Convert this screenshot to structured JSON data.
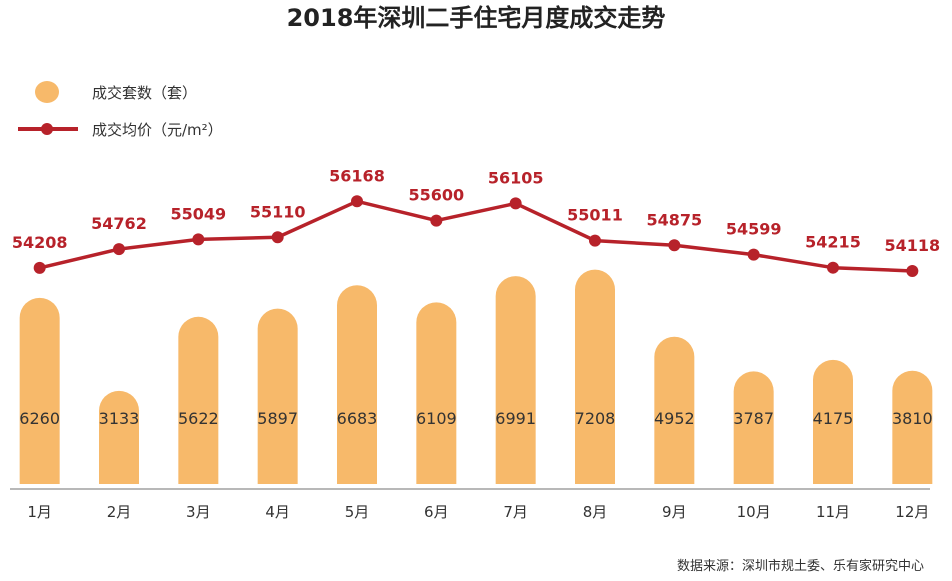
{
  "chart_data": {
    "type": "bar",
    "title": "2018年深圳二手住宅月度成交走势",
    "categories": [
      "1月",
      "2月",
      "3月",
      "4月",
      "5月",
      "6月",
      "7月",
      "8月",
      "9月",
      "10月",
      "11月",
      "12月"
    ],
    "series": [
      {
        "name": "成交套数（套）",
        "type": "bar",
        "values": [
          6260,
          3133,
          5622,
          5897,
          6683,
          6109,
          6991,
          7208,
          4952,
          3787,
          4175,
          3810
        ]
      },
      {
        "name": "成交均价（元/m²）",
        "type": "line",
        "values": [
          54208,
          54762,
          55049,
          55110,
          56168,
          55600,
          56105,
          55011,
          54875,
          54599,
          54215,
          54118
        ]
      }
    ],
    "legend_position": "top-left",
    "grid": false,
    "source": "数据来源：深圳市规土委、乐有家研究中心",
    "colors": {
      "bar": "#F7B96A",
      "line": "#B7222A",
      "price_label": "#B7222A",
      "axis": "#A0A0A0",
      "text": "#333333"
    }
  }
}
